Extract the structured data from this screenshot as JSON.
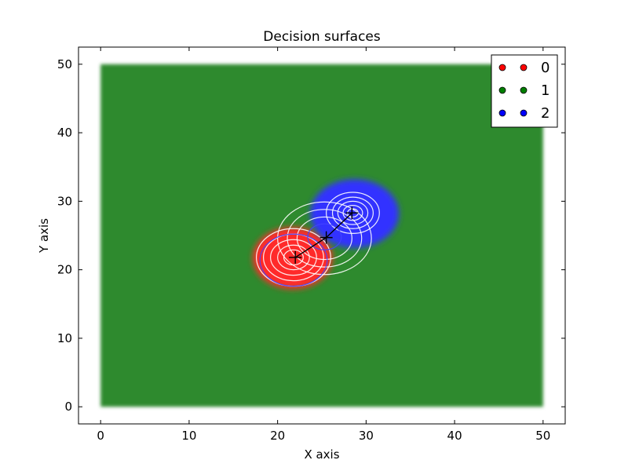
{
  "chart_data": {
    "type": "scatter",
    "title": "Decision surfaces",
    "xlabel": "X axis",
    "ylabel": "Y axis",
    "xlim": [
      -2.5,
      52.5
    ],
    "ylim": [
      -2.5,
      52.5
    ],
    "x_ticks": [
      0,
      10,
      20,
      30,
      40,
      50
    ],
    "y_ticks": [
      0,
      10,
      20,
      30,
      40,
      50
    ],
    "grid": false,
    "legend_placement": "top-right",
    "background_region": {
      "class": "1",
      "color": "#2f8a2f",
      "x": [
        0,
        50
      ],
      "y": [
        0,
        50
      ]
    },
    "class_regions": [
      {
        "class": "0",
        "color": "#ff2a2a",
        "center": [
          21.7,
          21.7
        ],
        "radius": 4.5
      },
      {
        "class": "2",
        "color": "#3333ff",
        "center": [
          28.7,
          28.2
        ],
        "radius": 5.0
      }
    ],
    "contours": [
      {
        "center": [
          21.8,
          21.8
        ],
        "radii": [
          4.2,
          3.4,
          2.6,
          1.8,
          1.1
        ],
        "color": "#ffffff"
      },
      {
        "center": [
          28.5,
          28.3
        ],
        "radii": [
          3.0,
          2.3,
          1.7,
          1.1,
          0.6
        ],
        "color": "#ffffff"
      },
      {
        "center": [
          25.3,
          24.6
        ],
        "radii": [
          5.3,
          4.2,
          3.1
        ],
        "color": "#ffffff"
      },
      {
        "center": [
          21.8,
          21.4
        ],
        "radii": [
          3.8
        ],
        "color": "#4444ff"
      },
      {
        "center": [
          25.3,
          24.8
        ],
        "radii": [
          1.9
        ],
        "color": "#4444ff"
      }
    ],
    "centroids": [
      {
        "class": "0",
        "x": 22.0,
        "y": 21.8
      },
      {
        "class": "1",
        "x": 25.5,
        "y": 24.7
      },
      {
        "class": "2",
        "x": 28.4,
        "y": 28.3
      }
    ],
    "series": [
      {
        "name": "0",
        "color": "#ff0000"
      },
      {
        "name": "1",
        "color": "#007f00"
      },
      {
        "name": "2",
        "color": "#0000ff"
      }
    ]
  }
}
